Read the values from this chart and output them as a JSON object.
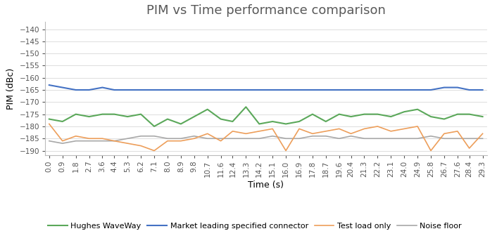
{
  "title": "PIM vs Time performance comparison",
  "xlabel": "Time (s)",
  "ylabel": "PIM (dBc)",
  "ylim": [
    -192,
    -137
  ],
  "yticks": [
    -140,
    -145,
    -150,
    -155,
    -160,
    -165,
    -170,
    -175,
    -180,
    -185,
    -190
  ],
  "x_values": [
    0.0,
    0.9,
    1.8,
    2.7,
    3.6,
    4.4,
    5.3,
    6.2,
    7.1,
    8.0,
    8.9,
    9.8,
    10.7,
    11.6,
    12.4,
    13.3,
    14.2,
    15.1,
    16.0,
    16.9,
    17.8,
    18.7,
    19.6,
    20.4,
    21.3,
    22.2,
    23.1,
    24.0,
    24.9,
    25.8,
    26.7,
    27.6,
    28.4,
    29.3
  ],
  "hughes_waveway": [
    -177,
    -178,
    -175,
    -176,
    -175,
    -175,
    -176,
    -175,
    -180,
    -177,
    -179,
    -176,
    -173,
    -177,
    -178,
    -172,
    -179,
    -178,
    -179,
    -178,
    -175,
    -178,
    -175,
    -176,
    -175,
    -175,
    -176,
    -174,
    -173,
    -176,
    -177,
    -175,
    -175,
    -176
  ],
  "market_leading": [
    -163,
    -164,
    -165,
    -165,
    -164,
    -165,
    -165,
    -165,
    -165,
    -165,
    -165,
    -165,
    -165,
    -165,
    -165,
    -165,
    -165,
    -165,
    -165,
    -165,
    -165,
    -165,
    -165,
    -165,
    -165,
    -165,
    -165,
    -165,
    -165,
    -165,
    -164,
    -164,
    -165,
    -165
  ],
  "test_load": [
    -179,
    -186,
    -184,
    -185,
    -185,
    -186,
    -187,
    -188,
    -190,
    -186,
    -186,
    -185,
    -183,
    -186,
    -182,
    -183,
    -182,
    -181,
    -190,
    -181,
    -183,
    -182,
    -181,
    -183,
    -181,
    -180,
    -182,
    -181,
    -180,
    -190,
    -183,
    -182,
    -189,
    -183
  ],
  "noise_floor": [
    -186,
    -187,
    -186,
    -186,
    -186,
    -186,
    -185,
    -184,
    -184,
    -185,
    -185,
    -184,
    -185,
    -185,
    -185,
    -185,
    -185,
    -184,
    -185,
    -185,
    -184,
    -184,
    -185,
    -184,
    -185,
    -185,
    -185,
    -185,
    -185,
    -184,
    -185,
    -185,
    -185,
    -185
  ],
  "color_hughes": "#5BA85A",
  "color_market": "#4472C4",
  "color_test": "#ED9E5A",
  "color_noise": "#A8A8A8",
  "title_color": "#595959",
  "title_fontsize": 13,
  "axis_label_fontsize": 9,
  "tick_fontsize": 7.5,
  "legend_labels": [
    "Hughes WaveWay",
    "Market leading specified connector",
    "Test load only",
    "Noise floor"
  ]
}
